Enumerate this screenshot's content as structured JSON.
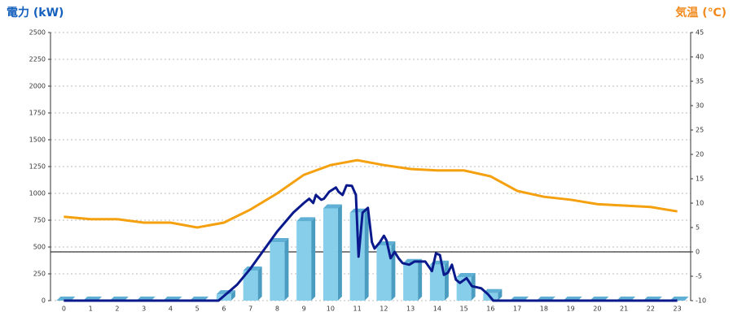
{
  "chart_data": {
    "type": "bar-line",
    "y_title": "電力 (kW)",
    "y2_title": "気温 (℃)",
    "categories": [
      "0",
      "1",
      "2",
      "3",
      "4",
      "5",
      "6",
      "7",
      "8",
      "9",
      "10",
      "11",
      "12",
      "13",
      "14",
      "15",
      "16",
      "17",
      "18",
      "19",
      "20",
      "21",
      "22",
      "23"
    ],
    "ylim": [
      0,
      2500
    ],
    "yticks": [
      0,
      250,
      500,
      750,
      1000,
      1250,
      1500,
      1750,
      2000,
      2250,
      2500
    ],
    "y2lim": [
      -10,
      45
    ],
    "y2ticks": [
      -10,
      -5,
      0,
      5,
      10,
      15,
      20,
      25,
      30,
      35,
      40,
      45
    ],
    "grid": true,
    "series": [
      {
        "kind": "bar",
        "color": "#87ceeb",
        "values": [
          0,
          0,
          0,
          0,
          0,
          0,
          60,
          280,
          545,
          740,
          860,
          820,
          515,
          350,
          335,
          220,
          70,
          0,
          0,
          0,
          0,
          0,
          0,
          0
        ]
      },
      {
        "kind": "line",
        "axis": "y2",
        "color": "#f5a00f",
        "values": [
          7.2,
          6.7,
          6.7,
          6,
          6,
          5,
          6,
          8.7,
          12,
          15.8,
          17.8,
          18.8,
          17.8,
          17,
          16.7,
          16.7,
          15.5,
          12.5,
          11.3,
          10.7,
          9.8,
          9.5,
          9.2,
          8.3
        ]
      },
      {
        "kind": "xyline",
        "color": "#0a1a8c",
        "x": [
          0,
          5.8,
          6.5,
          7.0,
          8.0,
          8.6,
          9.0,
          9.2,
          9.35,
          9.45,
          9.65,
          9.75,
          9.95,
          10.2,
          10.3,
          10.45,
          10.6,
          10.8,
          10.95,
          11.05,
          11.2,
          11.4,
          11.55,
          11.65,
          11.85,
          12.0,
          12.1,
          12.25,
          12.4,
          12.55,
          12.7,
          12.95,
          13.15,
          13.55,
          13.8,
          13.95,
          14.1,
          14.25,
          14.4,
          14.55,
          14.7,
          14.85,
          15.1,
          15.3,
          15.65,
          15.9,
          16.1,
          23
        ],
        "values": [
          0,
          0,
          150,
          300,
          645,
          820,
          910,
          950,
          910,
          985,
          940,
          950,
          1015,
          1055,
          1015,
          985,
          1075,
          1070,
          985,
          410,
          820,
          865,
          545,
          485,
          545,
          605,
          560,
          395,
          455,
          395,
          350,
          335,
          365,
          365,
          275,
          440,
          425,
          240,
          260,
          335,
          195,
          165,
          210,
          135,
          115,
          60,
          0,
          0
        ]
      }
    ]
  }
}
